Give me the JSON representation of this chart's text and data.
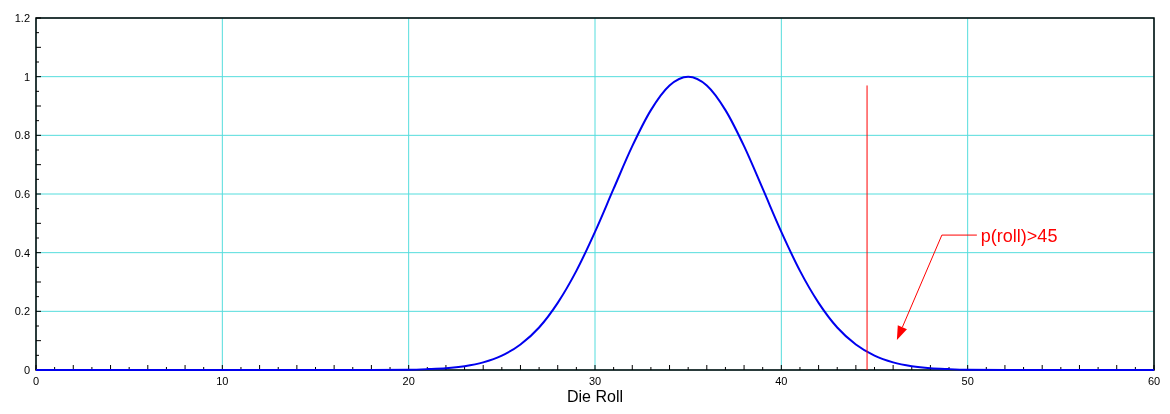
{
  "chart_data": {
    "type": "line",
    "xlabel": "Die Roll",
    "x": [
      0,
      10,
      18,
      20,
      21,
      22,
      23,
      24,
      25,
      26,
      27,
      28,
      29,
      30,
      31,
      32,
      33,
      34,
      35,
      36,
      37,
      38,
      39,
      40,
      41,
      42,
      43,
      44,
      45,
      46,
      47,
      48,
      49,
      50,
      52,
      60
    ],
    "series": [
      {
        "color": "#0000ee",
        "values": [
          0,
          0,
          0,
          0.001,
          0.003,
          0.006,
          0.013,
          0.026,
          0.049,
          0.087,
          0.145,
          0.229,
          0.338,
          0.471,
          0.618,
          0.763,
          0.886,
          0.97,
          1,
          0.97,
          0.886,
          0.763,
          0.618,
          0.471,
          0.338,
          0.229,
          0.145,
          0.087,
          0.049,
          0.026,
          0.013,
          0.006,
          0.003,
          0.001,
          0,
          0
        ]
      },
      {
        "type": "line",
        "color": "#ff0000",
        "x": [
          44.6,
          44.6
        ],
        "values": [
          0,
          0.97
        ]
      }
    ],
    "xlim": [
      0,
      60
    ],
    "ylim": [
      0,
      1.2
    ],
    "xticks": [
      0,
      10,
      20,
      30,
      40,
      50,
      60
    ],
    "yticks": [
      0,
      0.2,
      0.4,
      0.6,
      0.8,
      1,
      1.2
    ],
    "grid": true,
    "marker": "none",
    "line_style": "solid",
    "annotations": [
      "p(roll)>45"
    ]
  }
}
